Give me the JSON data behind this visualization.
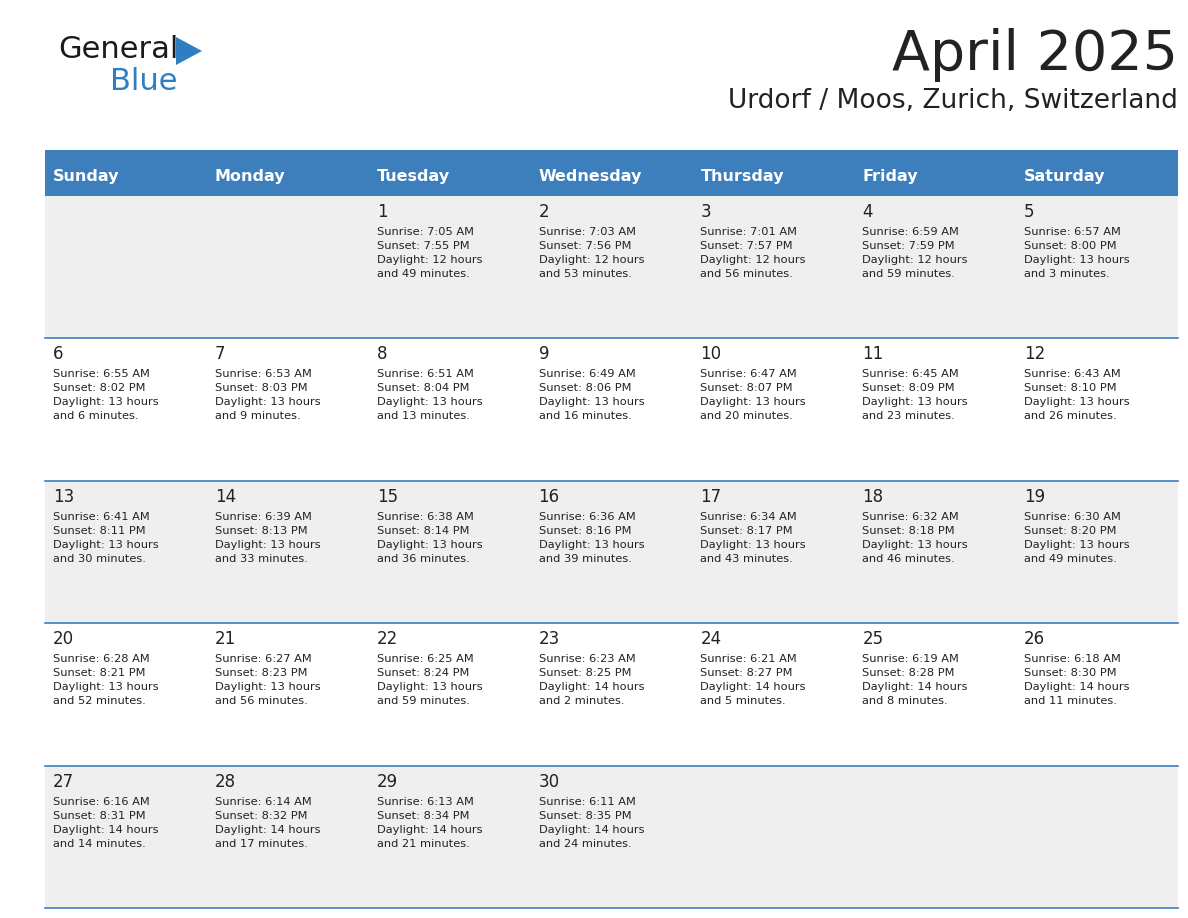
{
  "title": "April 2025",
  "subtitle": "Urdorf / Moos, Zurich, Switzerland",
  "header_bg_color": "#3d7ebc",
  "header_text_color": "#ffffff",
  "row_bg_light": "#efefef",
  "row_bg_white": "#ffffff",
  "separator_color": "#3d7ebc",
  "text_color": "#222222",
  "logo_black": "#1a1a1a",
  "logo_blue": "#2e7fc1",
  "days_of_week": [
    "Sunday",
    "Monday",
    "Tuesday",
    "Wednesday",
    "Thursday",
    "Friday",
    "Saturday"
  ],
  "calendar": [
    [
      {
        "day": "",
        "info": ""
      },
      {
        "day": "",
        "info": ""
      },
      {
        "day": "1",
        "info": "Sunrise: 7:05 AM\nSunset: 7:55 PM\nDaylight: 12 hours\nand 49 minutes."
      },
      {
        "day": "2",
        "info": "Sunrise: 7:03 AM\nSunset: 7:56 PM\nDaylight: 12 hours\nand 53 minutes."
      },
      {
        "day": "3",
        "info": "Sunrise: 7:01 AM\nSunset: 7:57 PM\nDaylight: 12 hours\nand 56 minutes."
      },
      {
        "day": "4",
        "info": "Sunrise: 6:59 AM\nSunset: 7:59 PM\nDaylight: 12 hours\nand 59 minutes."
      },
      {
        "day": "5",
        "info": "Sunrise: 6:57 AM\nSunset: 8:00 PM\nDaylight: 13 hours\nand 3 minutes."
      }
    ],
    [
      {
        "day": "6",
        "info": "Sunrise: 6:55 AM\nSunset: 8:02 PM\nDaylight: 13 hours\nand 6 minutes."
      },
      {
        "day": "7",
        "info": "Sunrise: 6:53 AM\nSunset: 8:03 PM\nDaylight: 13 hours\nand 9 minutes."
      },
      {
        "day": "8",
        "info": "Sunrise: 6:51 AM\nSunset: 8:04 PM\nDaylight: 13 hours\nand 13 minutes."
      },
      {
        "day": "9",
        "info": "Sunrise: 6:49 AM\nSunset: 8:06 PM\nDaylight: 13 hours\nand 16 minutes."
      },
      {
        "day": "10",
        "info": "Sunrise: 6:47 AM\nSunset: 8:07 PM\nDaylight: 13 hours\nand 20 minutes."
      },
      {
        "day": "11",
        "info": "Sunrise: 6:45 AM\nSunset: 8:09 PM\nDaylight: 13 hours\nand 23 minutes."
      },
      {
        "day": "12",
        "info": "Sunrise: 6:43 AM\nSunset: 8:10 PM\nDaylight: 13 hours\nand 26 minutes."
      }
    ],
    [
      {
        "day": "13",
        "info": "Sunrise: 6:41 AM\nSunset: 8:11 PM\nDaylight: 13 hours\nand 30 minutes."
      },
      {
        "day": "14",
        "info": "Sunrise: 6:39 AM\nSunset: 8:13 PM\nDaylight: 13 hours\nand 33 minutes."
      },
      {
        "day": "15",
        "info": "Sunrise: 6:38 AM\nSunset: 8:14 PM\nDaylight: 13 hours\nand 36 minutes."
      },
      {
        "day": "16",
        "info": "Sunrise: 6:36 AM\nSunset: 8:16 PM\nDaylight: 13 hours\nand 39 minutes."
      },
      {
        "day": "17",
        "info": "Sunrise: 6:34 AM\nSunset: 8:17 PM\nDaylight: 13 hours\nand 43 minutes."
      },
      {
        "day": "18",
        "info": "Sunrise: 6:32 AM\nSunset: 8:18 PM\nDaylight: 13 hours\nand 46 minutes."
      },
      {
        "day": "19",
        "info": "Sunrise: 6:30 AM\nSunset: 8:20 PM\nDaylight: 13 hours\nand 49 minutes."
      }
    ],
    [
      {
        "day": "20",
        "info": "Sunrise: 6:28 AM\nSunset: 8:21 PM\nDaylight: 13 hours\nand 52 minutes."
      },
      {
        "day": "21",
        "info": "Sunrise: 6:27 AM\nSunset: 8:23 PM\nDaylight: 13 hours\nand 56 minutes."
      },
      {
        "day": "22",
        "info": "Sunrise: 6:25 AM\nSunset: 8:24 PM\nDaylight: 13 hours\nand 59 minutes."
      },
      {
        "day": "23",
        "info": "Sunrise: 6:23 AM\nSunset: 8:25 PM\nDaylight: 14 hours\nand 2 minutes."
      },
      {
        "day": "24",
        "info": "Sunrise: 6:21 AM\nSunset: 8:27 PM\nDaylight: 14 hours\nand 5 minutes."
      },
      {
        "day": "25",
        "info": "Sunrise: 6:19 AM\nSunset: 8:28 PM\nDaylight: 14 hours\nand 8 minutes."
      },
      {
        "day": "26",
        "info": "Sunrise: 6:18 AM\nSunset: 8:30 PM\nDaylight: 14 hours\nand 11 minutes."
      }
    ],
    [
      {
        "day": "27",
        "info": "Sunrise: 6:16 AM\nSunset: 8:31 PM\nDaylight: 14 hours\nand 14 minutes."
      },
      {
        "day": "28",
        "info": "Sunrise: 6:14 AM\nSunset: 8:32 PM\nDaylight: 14 hours\nand 17 minutes."
      },
      {
        "day": "29",
        "info": "Sunrise: 6:13 AM\nSunset: 8:34 PM\nDaylight: 14 hours\nand 21 minutes."
      },
      {
        "day": "30",
        "info": "Sunrise: 6:11 AM\nSunset: 8:35 PM\nDaylight: 14 hours\nand 24 minutes."
      },
      {
        "day": "",
        "info": ""
      },
      {
        "day": "",
        "info": ""
      },
      {
        "day": "",
        "info": ""
      }
    ]
  ]
}
